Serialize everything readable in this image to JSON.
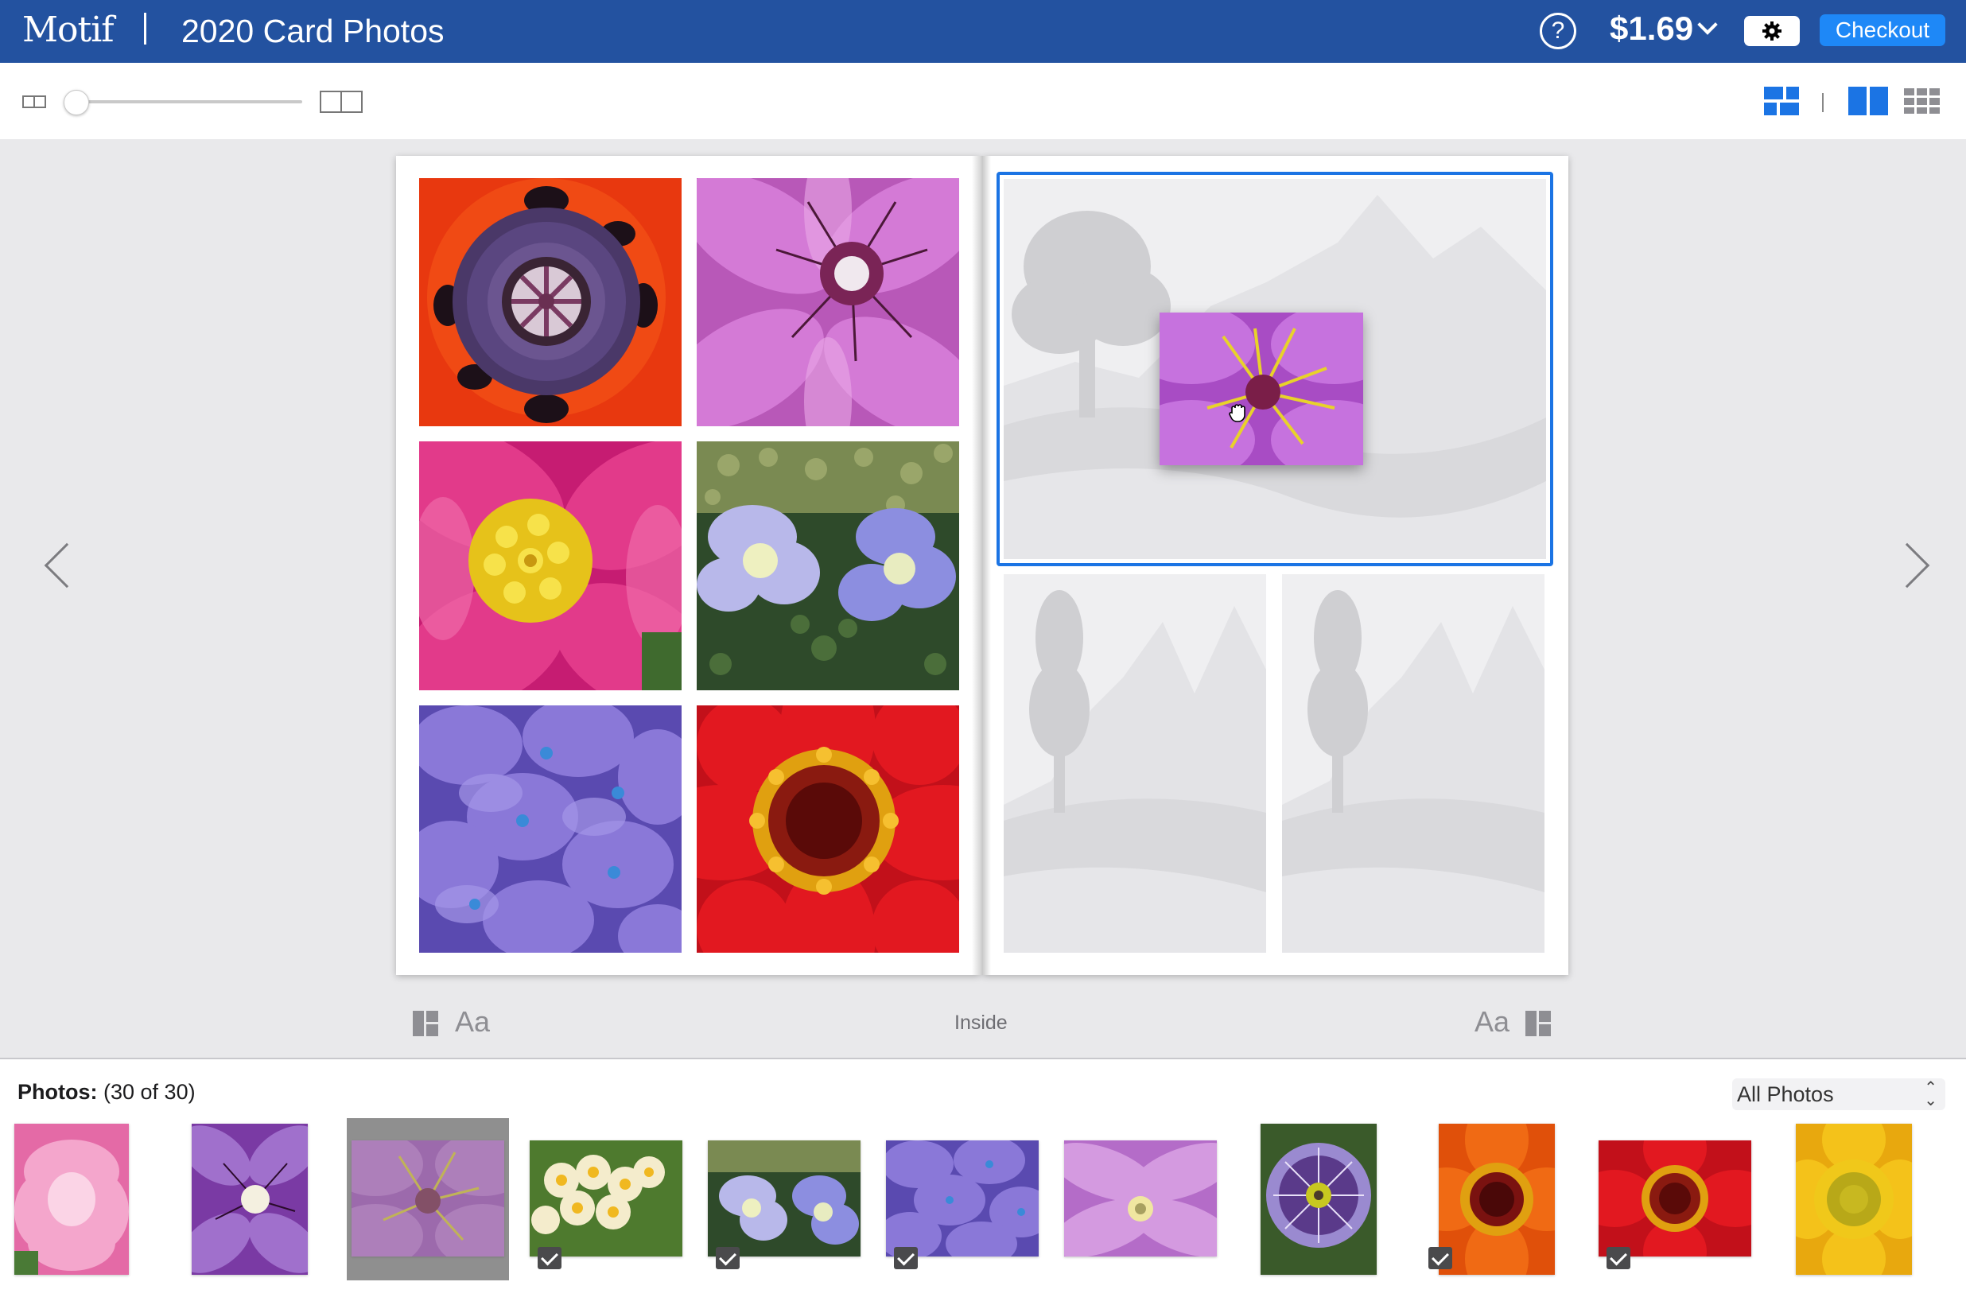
{
  "header": {
    "app_name": "Motif",
    "document_title": "2020 Card Photos",
    "help_glyph": "?",
    "price": "$1.69",
    "checkout_label": "Checkout",
    "bar_color": "#2352a0",
    "checkout_color": "#1e88f7"
  },
  "toolbar": {
    "zoom_level": 0,
    "icons": [
      "zoom-out-page-icon",
      "zoom-in-spread-icon",
      "layout-view-icon",
      "spread-view-icon",
      "grid-view-icon"
    ],
    "active_view": "spread-view"
  },
  "spread": {
    "label": "Inside",
    "left_page_layout": "6-photo grid",
    "right_page_layout": "1 large + 2 small",
    "text_style_label": "Aa",
    "selection_color": "#1b74e4"
  },
  "tray": {
    "label_bold": "Photos:",
    "label_count": "(30 of 30)",
    "filter_value": "All Photos",
    "photos": [
      {
        "name": "pink-peony",
        "used": false
      },
      {
        "name": "purple-clematis",
        "used": false
      },
      {
        "name": "violet-clematis-dragging",
        "used": false,
        "selected": true
      },
      {
        "name": "white-yellow-blossoms",
        "used": true
      },
      {
        "name": "blue-hydrangea",
        "used": true
      },
      {
        "name": "purple-hydrangea",
        "used": true
      },
      {
        "name": "light-purple-clematis",
        "used": false
      },
      {
        "name": "passion-flower",
        "used": false
      },
      {
        "name": "orange-zinnia",
        "used": true
      },
      {
        "name": "red-zinnia",
        "used": true
      },
      {
        "name": "sunflower",
        "used": false
      }
    ]
  }
}
